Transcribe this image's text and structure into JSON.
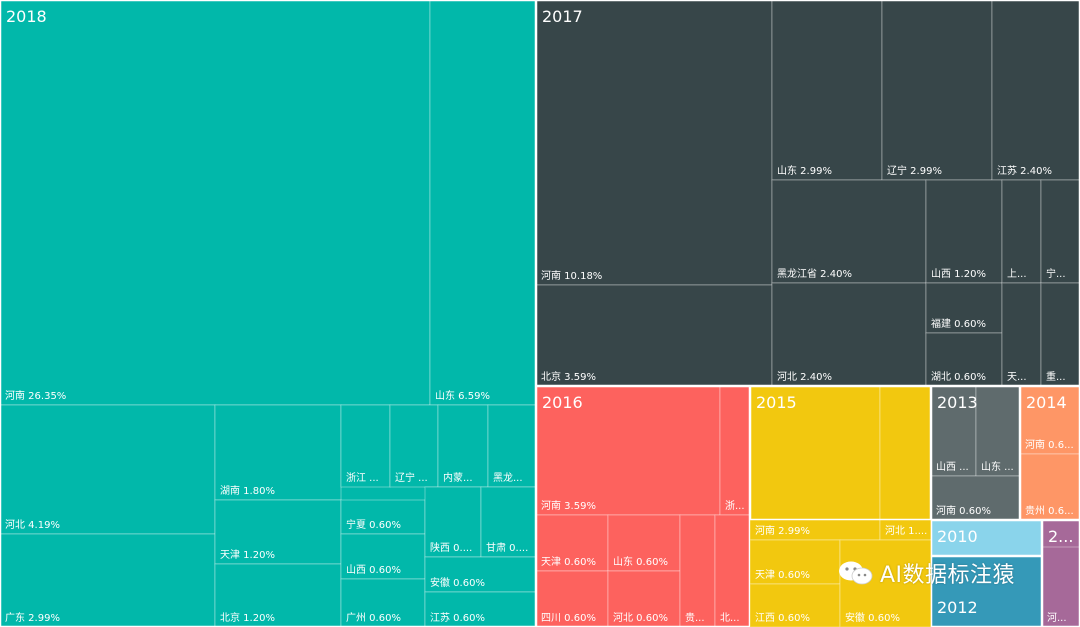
{
  "watermark": {
    "text": "AI数据标注猿",
    "icon": "wechat-icon"
  },
  "chart_data": {
    "type": "treemap",
    "unit": "%",
    "groups": [
      {
        "label": "2018",
        "color": "#01B8AA",
        "items": [
          {
            "label": "河南 26.35%",
            "name": "河南",
            "value": 26.35
          },
          {
            "label": "山东 6.59%",
            "name": "山东",
            "value": 6.59
          },
          {
            "label": "河北 4.19%",
            "name": "河北",
            "value": 4.19
          },
          {
            "label": "广东 2.99%",
            "name": "广东",
            "value": 2.99
          },
          {
            "label": "湖南 1.80%",
            "name": "湖南",
            "value": 1.8
          },
          {
            "label": "天津 1.20%",
            "name": "天津",
            "value": 1.2
          },
          {
            "label": "北京 1.20%",
            "name": "北京",
            "value": 1.2
          },
          {
            "label": "宁夏 0.60%",
            "name": "宁夏",
            "value": 0.6
          },
          {
            "label": "山西 0.60%",
            "name": "山西",
            "value": 0.6
          },
          {
            "label": "广州 0.60%",
            "name": "广州",
            "value": 0.6
          },
          {
            "label": "浙江 ...",
            "name": "浙江",
            "value": 0.6
          },
          {
            "label": "辽宁 ...",
            "name": "辽宁",
            "value": 0.6
          },
          {
            "label": "内蒙...",
            "name": "内蒙",
            "value": 0.6
          },
          {
            "label": "黑龙...",
            "name": "黑龙",
            "value": 0.6
          },
          {
            "label": "陕西 0....",
            "name": "陕西",
            "value": 0.6
          },
          {
            "label": "甘肃 0....",
            "name": "甘肃",
            "value": 0.6
          },
          {
            "label": "安徽 0.60%",
            "name": "安徽",
            "value": 0.6
          },
          {
            "label": "江苏 0.60%",
            "name": "江苏",
            "value": 0.6
          }
        ]
      },
      {
        "label": "2017",
        "color": "#374649",
        "items": [
          {
            "label": "河南 10.18%",
            "name": "河南",
            "value": 10.18
          },
          {
            "label": "北京 3.59%",
            "name": "北京",
            "value": 3.59
          },
          {
            "label": "山东 2.99%",
            "name": "山东",
            "value": 2.99
          },
          {
            "label": "辽宁 2.99%",
            "name": "辽宁",
            "value": 2.99
          },
          {
            "label": "江苏 2.40%",
            "name": "江苏",
            "value": 2.4
          },
          {
            "label": "黑龙江省 2.40%",
            "name": "黑龙江省",
            "value": 2.4
          },
          {
            "label": "河北 2.40%",
            "name": "河北",
            "value": 2.4
          },
          {
            "label": "山西 1.20%",
            "name": "山西",
            "value": 1.2
          },
          {
            "label": "福建 0.60%",
            "name": "福建",
            "value": 0.6
          },
          {
            "label": "湖北 0.60%",
            "name": "湖北",
            "value": 0.6
          },
          {
            "label": "上...",
            "name": "上",
            "value": 0.6
          },
          {
            "label": "宁...",
            "name": "宁",
            "value": 0.6
          },
          {
            "label": "天...",
            "name": "天",
            "value": 0.6
          },
          {
            "label": "重...",
            "name": "重",
            "value": 0.6
          }
        ]
      },
      {
        "label": "2016",
        "color": "#FD625E",
        "items": [
          {
            "label": "河南 3.59%",
            "name": "河南",
            "value": 3.59
          },
          {
            "label": "浙...",
            "name": "浙",
            "value": 0.6
          },
          {
            "label": "天津 0.60%",
            "name": "天津",
            "value": 0.6
          },
          {
            "label": "山东 0.60%",
            "name": "山东",
            "value": 0.6
          },
          {
            "label": "四川 0.60%",
            "name": "四川",
            "value": 0.6
          },
          {
            "label": "河北 0.60%",
            "name": "河北",
            "value": 0.6
          },
          {
            "label": "贵...",
            "name": "贵",
            "value": 0.6
          },
          {
            "label": "北...",
            "name": "北",
            "value": 0.6
          }
        ]
      },
      {
        "label": "2015",
        "color": "#F2C80F",
        "items": [
          {
            "label": "河南 2.99%",
            "name": "河南",
            "value": 2.99
          },
          {
            "label": "河北 1....",
            "name": "河北",
            "value": 1.2
          },
          {
            "label": "天津 0.60%",
            "name": "天津",
            "value": 0.6
          },
          {
            "label": "江西 0.60%",
            "name": "江西",
            "value": 0.6
          },
          {
            "label": "安徽 0.60%",
            "name": "安徽",
            "value": 0.6
          }
        ]
      },
      {
        "label": "2013",
        "color": "#5F6B6D",
        "items": [
          {
            "label": "山西 ...",
            "name": "山西",
            "value": 0.6
          },
          {
            "label": "山东 ...",
            "name": "山东",
            "value": 0.6
          },
          {
            "label": "河南 0.60%",
            "name": "河南",
            "value": 0.6
          }
        ]
      },
      {
        "label": "2014",
        "color": "#FE9666",
        "items": [
          {
            "label": "河南 0.6...",
            "name": "河南",
            "value": 0.6
          },
          {
            "label": "贵州 0.6...",
            "name": "贵州",
            "value": 0.6
          }
        ]
      },
      {
        "label": "2010",
        "color": "#8AD4EB",
        "items": []
      },
      {
        "label": "2012",
        "color": "#3599B8",
        "items": []
      },
      {
        "label": "2...",
        "color": "#A66999",
        "items": [
          {
            "label": "河...",
            "name": "河",
            "value": 0.6
          }
        ]
      }
    ]
  }
}
